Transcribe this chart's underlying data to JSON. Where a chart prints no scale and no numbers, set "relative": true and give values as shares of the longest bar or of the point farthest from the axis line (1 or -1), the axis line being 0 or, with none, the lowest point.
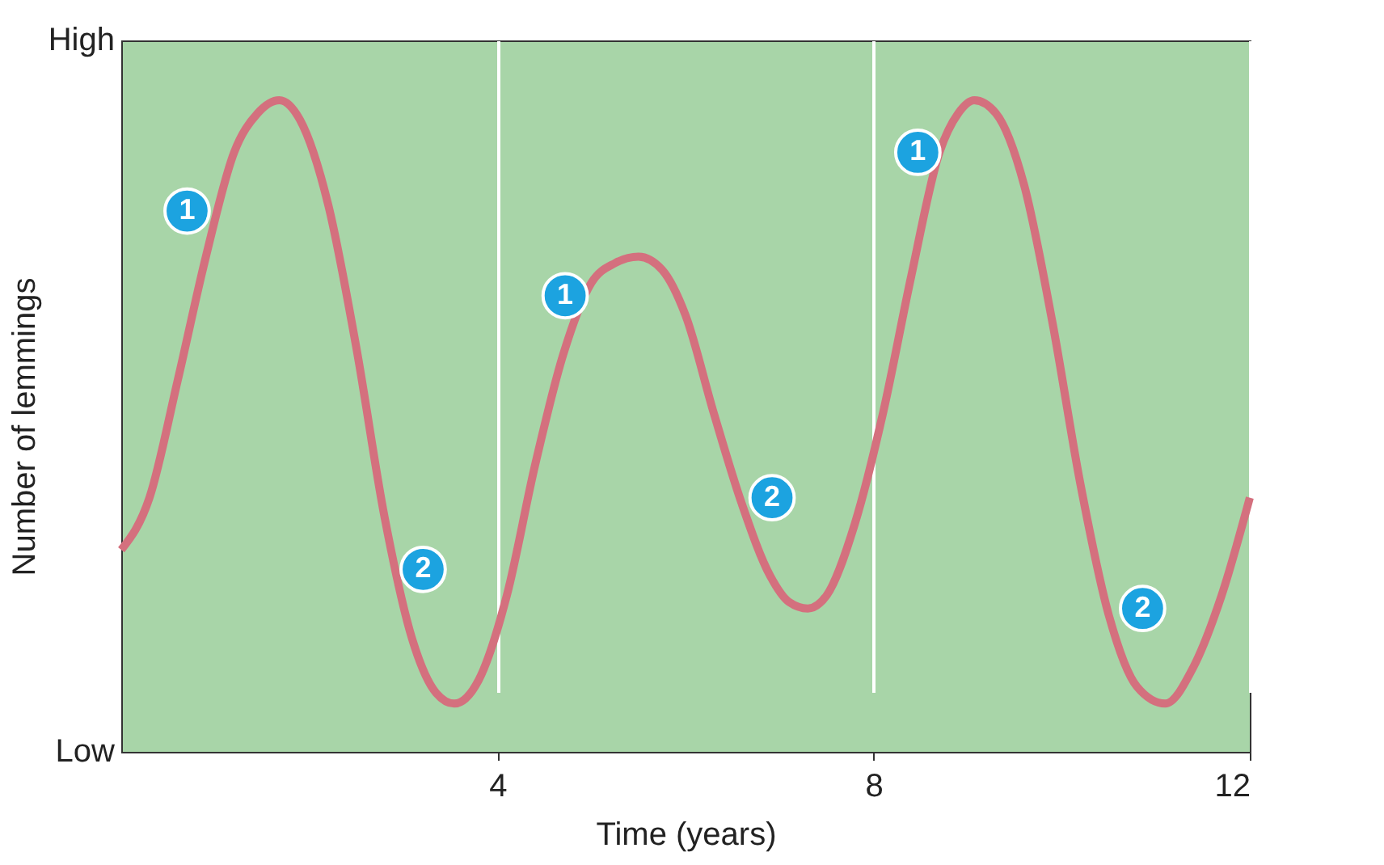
{
  "chart_data": {
    "type": "line",
    "xlabel": "Time (years)",
    "ylabel": "Number of lemmings",
    "relative": true,
    "x": [
      0,
      0.3,
      0.6,
      0.9,
      1.2,
      1.45,
      1.68,
      1.9,
      2.2,
      2.5,
      2.8,
      3.1,
      3.35,
      3.54,
      3.8,
      4.1,
      4.4,
      4.7,
      5.0,
      5.25,
      5.5,
      5.75,
      6.0,
      6.3,
      6.6,
      6.9,
      7.1,
      7.3,
      7.5,
      7.8,
      8.1,
      8.4,
      8.7,
      8.9,
      9.07,
      9.3,
      9.6,
      9.9,
      10.2,
      10.5,
      10.8,
      11.1,
      11.4,
      11.7,
      12
    ],
    "series": [
      {
        "color": "#d4707e",
        "values": [
          0.31,
          0.39,
          0.57,
          0.76,
          0.92,
          0.98,
          1,
          0.97,
          0.84,
          0.62,
          0.36,
          0.17,
          0.09,
          0.074,
          0.11,
          0.24,
          0.44,
          0.61,
          0.72,
          0.75,
          0.76,
          0.74,
          0.67,
          0.52,
          0.38,
          0.27,
          0.23,
          0.22,
          0.24,
          0.35,
          0.52,
          0.73,
          0.92,
          0.98,
          1,
          0.98,
          0.87,
          0.66,
          0.41,
          0.21,
          0.1,
          0.074,
          0.13,
          0.24,
          0.39
        ]
      }
    ],
    "xlim": [
      0,
      12
    ],
    "xticks": [
      4,
      8,
      12
    ],
    "grid": "x",
    "marker": "none",
    "line_style": "solid",
    "annotations": [
      "High",
      "Low",
      {
        "text": "1",
        "x": 0.7,
        "y": 0.83
      },
      {
        "text": "2",
        "x": 3.21,
        "y": 0.28
      },
      {
        "text": "1",
        "x": 4.72,
        "y": 0.7
      },
      {
        "text": "2",
        "x": 6.92,
        "y": 0.39
      },
      {
        "text": "1",
        "x": 8.47,
        "y": 0.92
      },
      {
        "text": "2",
        "x": 10.86,
        "y": 0.22
      }
    ]
  }
}
